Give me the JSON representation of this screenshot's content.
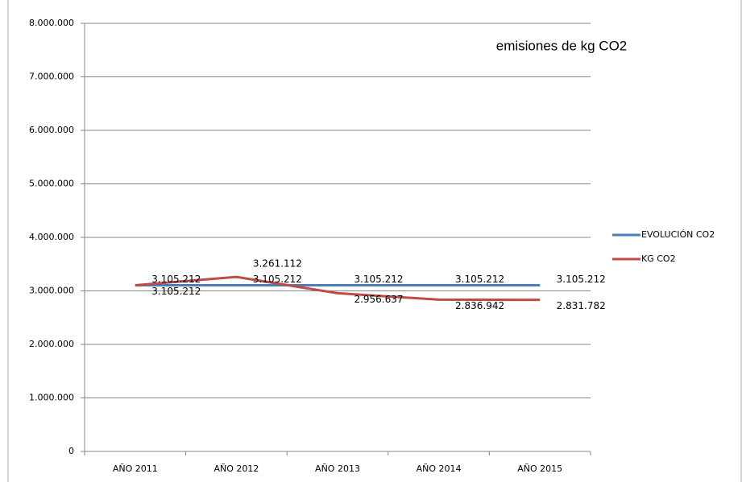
{
  "chart_data": {
    "type": "line",
    "title": "emisiones de kg CO2",
    "categories": [
      "AÑO 2011",
      "AÑO 2012",
      "AÑO 2013",
      "AÑO 2014",
      "AÑO 2015"
    ],
    "series": [
      {
        "name": "EVOLUCIÓN CO2",
        "color": "#4a7ebb",
        "values": [
          3105212,
          3105212,
          3105212,
          3105212,
          3105212
        ],
        "value_labels": [
          "3.105.212",
          "3.105.212",
          "3.105.212",
          "3.105.212",
          "3.105.212"
        ]
      },
      {
        "name": "KG CO2",
        "color": "#be4b48",
        "values": [
          3105212,
          3261112,
          2956637,
          2836942,
          2831782
        ],
        "value_labels": [
          "3.105.212",
          "3.261.112",
          "2.956.637",
          "2.836.942",
          "2.831.782"
        ]
      }
    ],
    "ylim": [
      0,
      8000000
    ],
    "yticks": [
      0,
      {
        "value": 1000000,
        "label": "1.000.000"
      },
      {
        "value": 2000000,
        "label": "2.000.000"
      },
      {
        "value": 3000000,
        "label": "3.000.000"
      },
      {
        "value": 4000000,
        "label": "4.000.000"
      },
      {
        "value": 5000000,
        "label": "5.000.000"
      },
      {
        "value": 6000000,
        "label": "6.000.000"
      },
      {
        "value": 7000000,
        "label": "7.000.000"
      },
      {
        "value": 8000000,
        "label": "8.000.000"
      }
    ],
    "grid": true,
    "legend": "right"
  }
}
